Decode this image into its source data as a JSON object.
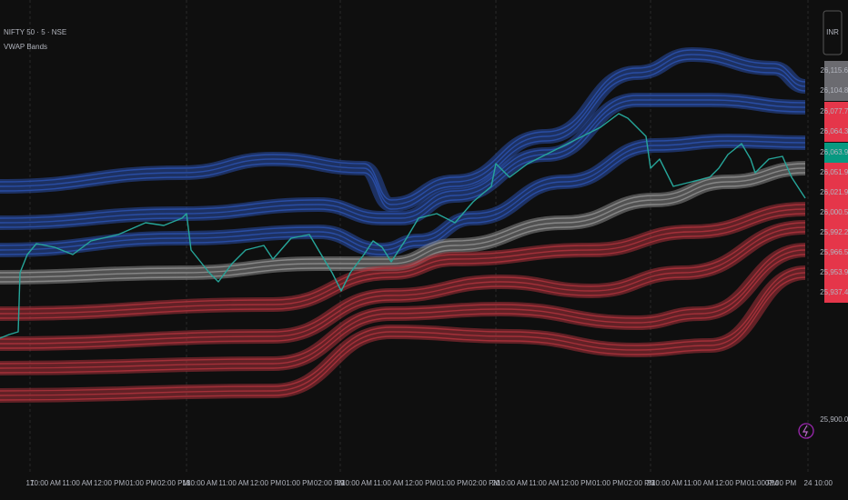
{
  "header": {
    "symbol": "NIFTY 50 · 5 · NSE",
    "indicator": "VWAP Bands"
  },
  "currency": "INR",
  "price_axis": [
    "26,115.65",
    "26,104.85",
    "26,077.74",
    "26,064.37",
    "26,063.95",
    "26,051.94",
    "26,021.94",
    "26,000.54",
    "25,992.20",
    "25,966.54",
    "25,953.90",
    "25,937.47",
    "25,900.00"
  ],
  "time_axis": [
    "17",
    "10:00 AM",
    "11:00 AM",
    "12:00 PM",
    "01:00 PM",
    "02:00 PM",
    "18",
    "10:00 AM",
    "11:00 AM",
    "12:00 PM",
    "01:00 PM",
    "02:00 PM",
    "19",
    "10:00 AM",
    "11:00 AM",
    "12:00 PM",
    "01:00 PM",
    "02:00 PM",
    "20",
    "10:00 AM",
    "11:00 AM",
    "12:00 PM",
    "01:00 PM",
    "02:00 PM",
    "23",
    "10:00 AM",
    "11:00 AM",
    "12:00 PM",
    "01:00 PM",
    "02:00 PM",
    "24",
    "10:00"
  ]
}
